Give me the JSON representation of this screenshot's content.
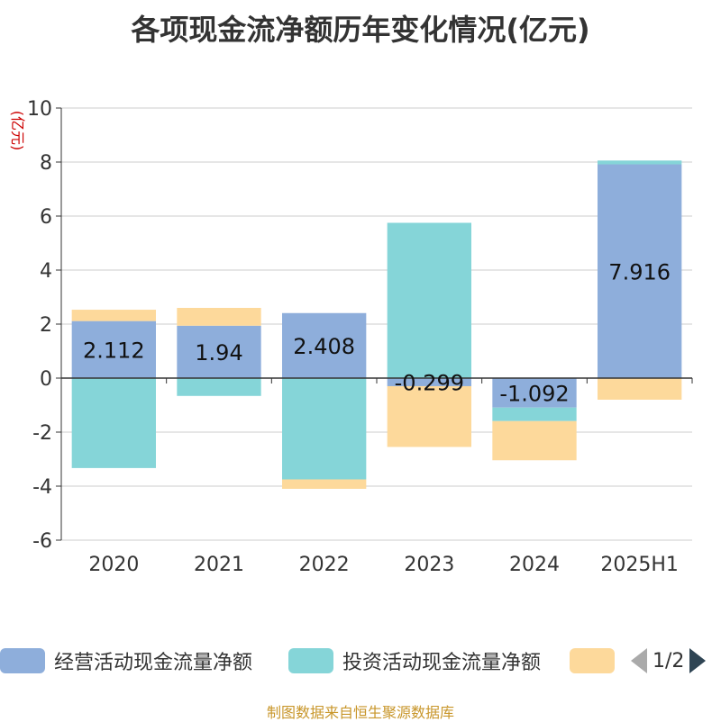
{
  "chart_data": {
    "type": "bar",
    "stacked": true,
    "title": "各项现金流净额历年变化情况(亿元)",
    "ylabel": "(亿元)",
    "ylim": [
      -6,
      10
    ],
    "yticks": [
      10,
      8,
      6,
      4,
      2,
      0,
      -2,
      -4,
      -6
    ],
    "grid": true,
    "legend_position": "bottom",
    "categories": [
      "2020",
      "2021",
      "2022",
      "2023",
      "2024",
      "2025H1"
    ],
    "series": [
      {
        "name": "经营活动现金流量净额",
        "color": "#8eaedb",
        "show_labels": true,
        "values": [
          2.112,
          1.94,
          2.408,
          -0.299,
          -1.092,
          7.916
        ]
      },
      {
        "name": "投资活动现金流量净额",
        "color": "#85d5d8",
        "show_labels": false,
        "values": [
          -3.33,
          -0.66,
          -3.75,
          5.75,
          -0.5,
          0.14
        ]
      },
      {
        "name": "",
        "color": "#fdd99b",
        "show_labels": false,
        "values": [
          0.42,
          0.66,
          -0.35,
          -2.25,
          -1.45,
          -0.8
        ]
      }
    ],
    "data_labels": [
      "2.112",
      "1.94",
      "2.408",
      "-0.299",
      "-1.092",
      "7.916"
    ]
  },
  "legend": {
    "items": [
      {
        "label": "经营活动现金流量净额",
        "color": "#8eaedb"
      },
      {
        "label": "投资活动现金流量净额",
        "color": "#85d5d8"
      },
      {
        "label": "",
        "color": "#fdd99b"
      }
    ],
    "pager_text": "1/2"
  },
  "source": "制图数据来自恒生聚源数据库"
}
